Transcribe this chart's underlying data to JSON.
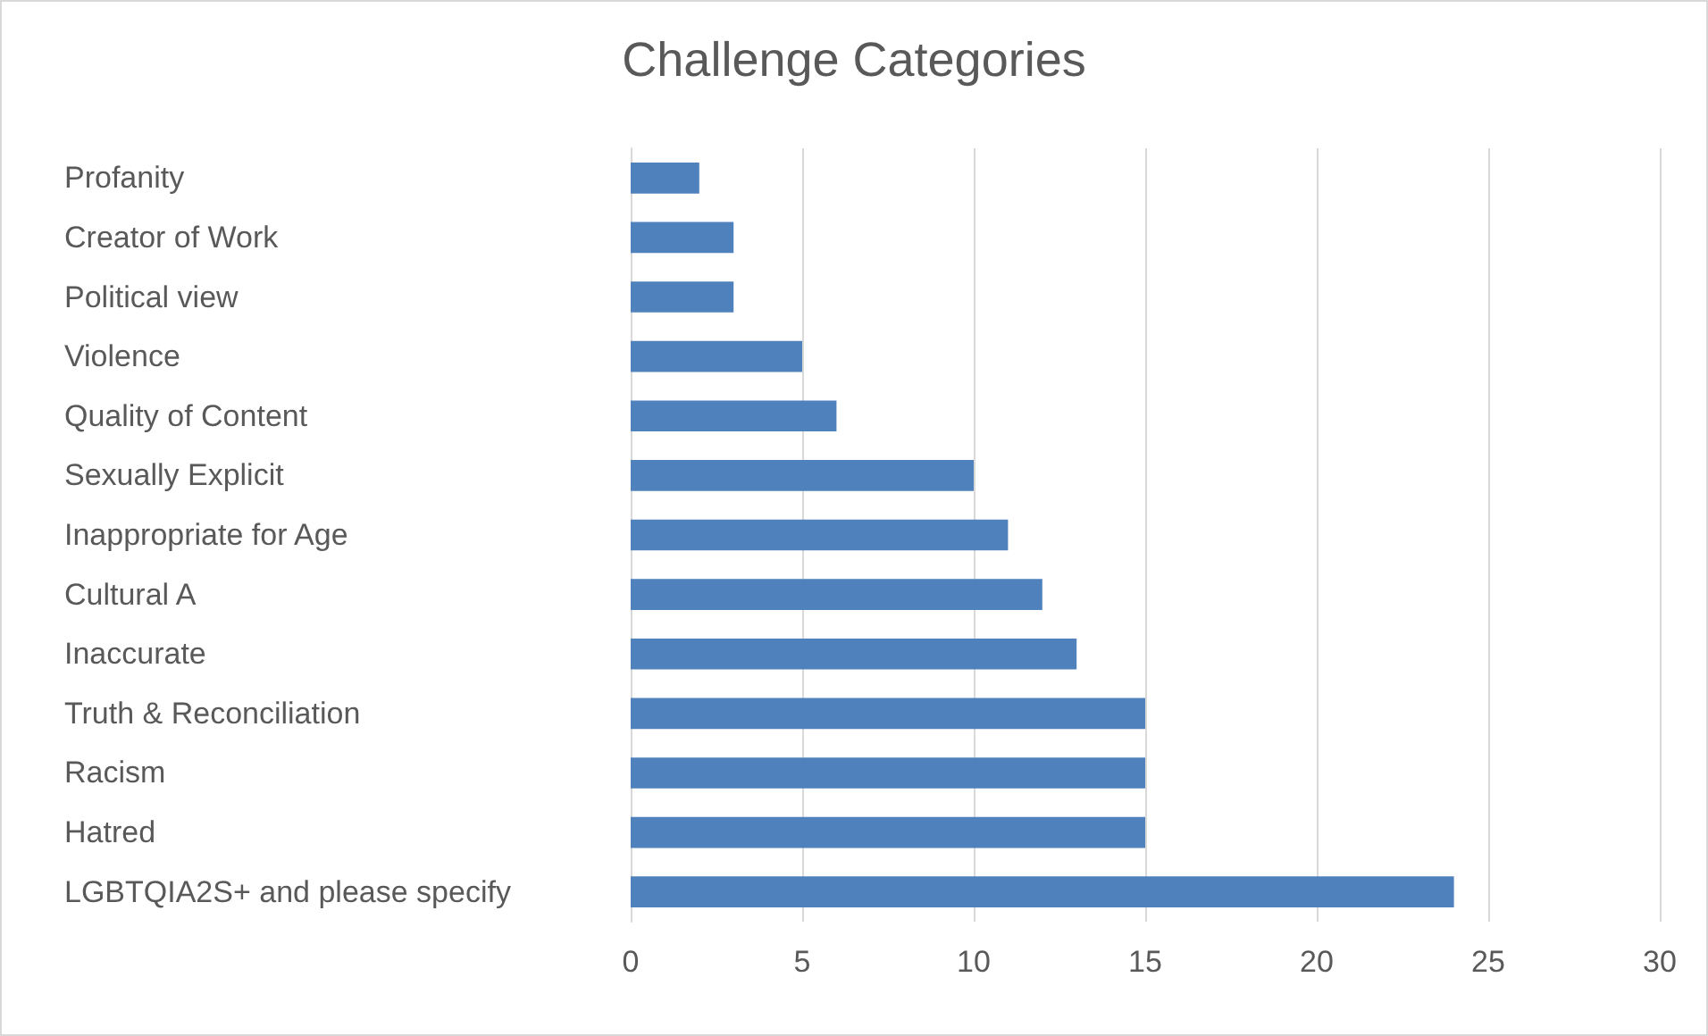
{
  "chart_data": {
    "type": "bar",
    "title": "Challenge Categories",
    "orientation": "horizontal",
    "categories": [
      "Profanity",
      "Creator of Work",
      "Political view",
      "Violence",
      "Quality of Content",
      "Sexually Explicit",
      "Inappropriate for Age",
      "Cultural A",
      "Inaccurate",
      "Truth & Reconciliation",
      "Racism",
      "Hatred",
      "LGBTQIA2S+ and please specify"
    ],
    "values": [
      2,
      3,
      3,
      5,
      6,
      10,
      11,
      12,
      13,
      15,
      15,
      15,
      24
    ],
    "color": "#4f81bd",
    "xlim": [
      0,
      30
    ],
    "xticks": [
      0,
      5,
      10,
      15,
      20,
      25,
      30
    ],
    "grid": "x"
  }
}
